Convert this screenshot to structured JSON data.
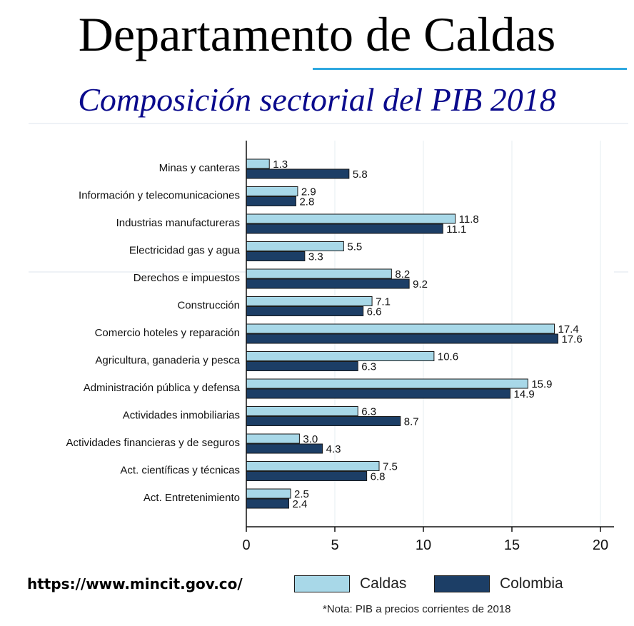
{
  "header": {
    "title": "Departamento de Caldas",
    "subtitle": "Composición sectorial del PIB 2018",
    "subtitle_color": "#0a0a8c"
  },
  "footer": {
    "source": "https://www.mincit.gov.co/",
    "note": "*Nota: PIB a precios corrientes de 2018"
  },
  "legend": [
    {
      "label": "Caldas",
      "color": "#a8d8e8"
    },
    {
      "label": "Colombia",
      "color": "#1c3e66"
    }
  ],
  "chart_data": {
    "type": "bar",
    "orientation": "horizontal",
    "title": "Composición sectorial del PIB 2018",
    "xlabel": "",
    "ylabel": "",
    "xlim": [
      0,
      20
    ],
    "xticks": [
      0,
      5,
      10,
      15,
      20
    ],
    "grid": true,
    "legend_position": "bottom",
    "categories": [
      "Minas y canteras",
      "Información y telecomunicaciones",
      "Industrias manufactureras",
      "Electricidad gas y agua",
      "Derechos e impuestos",
      "Construcción",
      "Comercio hoteles y reparación",
      "Agricultura, ganaderia y pesca",
      "Administración pública y defensa",
      "Actividades inmobiliarias",
      "Actividades financieras y de seguros",
      "Act. científicas y técnicas",
      "Act. Entretenimiento"
    ],
    "series": [
      {
        "name": "Caldas",
        "color": "#a8d8e8",
        "values": [
          1.3,
          2.9,
          11.8,
          5.5,
          8.2,
          7.1,
          17.4,
          10.6,
          15.9,
          6.3,
          3.0,
          7.5,
          2.5
        ]
      },
      {
        "name": "Colombia",
        "color": "#1c3e66",
        "values": [
          5.8,
          2.8,
          11.1,
          3.3,
          9.2,
          6.6,
          17.6,
          6.3,
          14.9,
          8.7,
          4.3,
          6.8,
          2.4
        ]
      }
    ]
  }
}
